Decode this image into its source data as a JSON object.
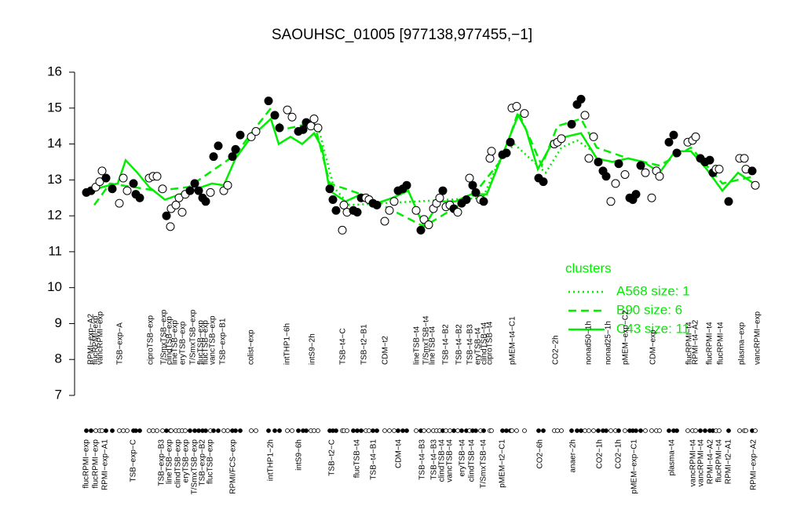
{
  "chart_data": {
    "type": "line",
    "title": "SAOUHSC_01005 [977138,977455,−1]",
    "ylim": [
      7,
      16
    ],
    "yticks": [
      7,
      8,
      9,
      10,
      11,
      12,
      13,
      14,
      15,
      16
    ],
    "xlim": [
      0,
      880
    ],
    "legend_title": "clusters",
    "legend": "right",
    "points": {
      "color": "#000000",
      "x": [
        15,
        21,
        27,
        32,
        35,
        40,
        48,
        57,
        62,
        67,
        75,
        78,
        83,
        95,
        100,
        105,
        112,
        117,
        122,
        123,
        129,
        133,
        137,
        141,
        147,
        153,
        158,
        163,
        167,
        173,
        177,
        183,
        190,
        195,
        201,
        205,
        211,
        225,
        231,
        247,
        255,
        261,
        271,
        277,
        285,
        291,
        295,
        301,
        305,
        310,
        325,
        329,
        333,
        341,
        343,
        347,
        355,
        360,
        365,
        371,
        375,
        380,
        385,
        395,
        401,
        407,
        412,
        418,
        423,
        435,
        441,
        445,
        451,
        457,
        461,
        465,
        469,
        473,
        478,
        483,
        488,
        493,
        499,
        503,
        507,
        511,
        517,
        521,
        529,
        531,
        545,
        550,
        555,
        557,
        563,
        573,
        591,
        597,
        611,
        615,
        620,
        633,
        640,
        645,
        650,
        655,
        661,
        667,
        673,
        677,
        683,
        689,
        693,
        701,
        707,
        711,
        715,
        721,
        727,
        735,
        741,
        745,
        757,
        763,
        767,
        781,
        787,
        791,
        797,
        803,
        809,
        813,
        817,
        821,
        833,
        847,
        853,
        855,
        863,
        867
      ],
      "values": [
        12.65,
        12.7,
        12.8,
        12.95,
        13.25,
        13.05,
        12.75,
        12.35,
        13.05,
        12.7,
        12.9,
        12.6,
        12.5,
        13.05,
        13.1,
        13.1,
        12.75,
        12.0,
        11.7,
        12.2,
        12.3,
        12.5,
        12.1,
        12.6,
        12.7,
        12.9,
        12.7,
        12.5,
        12.4,
        12.65,
        13.65,
        13.95,
        12.7,
        12.85,
        13.65,
        13.85,
        14.25,
        14.2,
        14.35,
        15.2,
        14.8,
        14.45,
        14.95,
        14.75,
        14.35,
        14.4,
        14.6,
        14.5,
        14.7,
        14.45,
        12.75,
        12.45,
        12.15,
        11.6,
        12.3,
        12.1,
        12.15,
        12.1,
        12.5,
        12.5,
        12.45,
        12.35,
        12.3,
        11.85,
        12.15,
        12.4,
        12.7,
        12.75,
        12.85,
        12.15,
        11.6,
        11.9,
        11.75,
        12.2,
        12.35,
        12.5,
        12.7,
        12.25,
        12.3,
        12.2,
        12.1,
        12.35,
        12.45,
        13.05,
        12.85,
        12.65,
        12.45,
        12.4,
        13.6,
        13.8,
        13.7,
        13.75,
        14.05,
        15.0,
        15.05,
        14.85,
        13.05,
        12.95,
        14.0,
        14.05,
        14.15,
        14.55,
        15.1,
        15.25,
        14.8,
        13.6,
        14.2,
        13.5,
        13.25,
        13.1,
        12.4,
        12.9,
        13.45,
        13.15,
        12.5,
        12.45,
        12.6,
        13.4,
        13.2,
        12.5,
        13.25,
        13.1,
        14.05,
        14.25,
        13.75,
        14.05,
        14.1,
        14.2,
        13.6,
        13.5,
        13.55,
        13.2,
        13.3,
        13.3,
        12.4,
        13.6,
        13.6,
        13.3,
        13.25,
        12.85
      ],
      "filled": [
        true,
        true,
        false,
        false,
        false,
        true,
        true,
        false,
        false,
        false,
        true,
        true,
        true,
        false,
        false,
        false,
        false,
        true,
        false,
        false,
        false,
        false,
        false,
        false,
        true,
        true,
        true,
        true,
        true,
        false,
        true,
        true,
        false,
        false,
        true,
        true,
        true,
        false,
        false,
        true,
        true,
        true,
        false,
        false,
        true,
        true,
        true,
        false,
        false,
        false,
        true,
        true,
        true,
        false,
        false,
        false,
        true,
        true,
        true,
        false,
        false,
        true,
        true,
        false,
        false,
        false,
        true,
        true,
        true,
        false,
        true,
        false,
        false,
        false,
        false,
        false,
        true,
        false,
        false,
        true,
        false,
        true,
        true,
        false,
        true,
        true,
        false,
        true,
        false,
        false,
        true,
        true,
        true,
        false,
        false,
        false,
        true,
        true,
        false,
        false,
        false,
        true,
        true,
        true,
        false,
        false,
        false,
        true,
        true,
        true,
        false,
        false,
        true,
        false,
        true,
        true,
        true,
        true,
        false,
        false,
        false,
        false,
        true,
        true,
        true,
        false,
        false,
        false,
        true,
        true,
        true,
        true,
        false,
        false,
        true,
        false,
        false,
        false,
        true,
        false
      ]
    },
    "series": [
      {
        "name": "A568 size: 1",
        "style": "dotted",
        "color": "#00ee00",
        "x": [
          300,
          310,
          330,
          350,
          520,
          540,
          560,
          600,
          620,
          640,
          660
        ],
        "values": [
          14.6,
          14.5,
          12.8,
          12.3,
          12.5,
          13.5,
          14.0,
          13.2,
          13.9,
          14.1,
          13.8
        ]
      },
      {
        "name": "B90 size: 6",
        "style": "dashed",
        "color": "#00ee00",
        "x": [
          25,
          45,
          105,
          145,
          205,
          225,
          250,
          265,
          285,
          305,
          325,
          365,
          445,
          505,
          545,
          565,
          595,
          615,
          645,
          665,
          705,
          745,
          785,
          825,
          865
        ],
        "values": [
          12.3,
          12.9,
          12.7,
          12.8,
          13.7,
          14.3,
          15.0,
          14.4,
          14.5,
          14.6,
          12.9,
          12.6,
          11.7,
          12.5,
          13.6,
          14.9,
          13.4,
          14.5,
          14.7,
          13.9,
          13.6,
          13.4,
          13.9,
          12.9,
          13.1
        ]
      },
      {
        "name": "C43 size: 11",
        "style": "solid",
        "color": "#00ee00",
        "x": [
          15,
          35,
          55,
          65,
          80,
          95,
          115,
          135,
          155,
          175,
          190,
          205,
          225,
          250,
          260,
          275,
          290,
          305,
          315,
          325,
          345,
          365,
          385,
          405,
          425,
          445,
          465,
          485,
          505,
          525,
          545,
          565,
          575,
          590,
          605,
          625,
          645,
          665,
          685,
          705,
          725,
          745,
          765,
          785,
          805,
          825,
          845,
          865
        ],
        "values": [
          12.6,
          12.8,
          12.9,
          13.55,
          13.2,
          12.8,
          12.45,
          12.6,
          12.75,
          12.9,
          12.85,
          13.6,
          14.2,
          14.7,
          14.0,
          14.2,
          14.0,
          14.3,
          13.9,
          12.7,
          12.4,
          12.6,
          12.35,
          12.5,
          12.7,
          11.7,
          12.4,
          12.4,
          12.6,
          12.6,
          13.7,
          14.8,
          14.4,
          13.3,
          13.9,
          14.2,
          14.3,
          13.6,
          13.5,
          13.6,
          13.5,
          13.2,
          13.8,
          13.8,
          13.3,
          12.7,
          13.2,
          12.9
        ]
      }
    ],
    "top_labels": {
      "text": [
        "RPMI−exp−A2",
        "flucRPMI−exp",
        "vancRPMI−exp",
        "TSB−exp−A",
        "ciproTSB−exp",
        "T/SmxTSB−exp",
        "clindTSB−exp",
        "lineTSB−exp",
        "eryTSB−exp",
        "T/SmxTSB−exp",
        "flucTSB−exp",
        "flucTSB−exp",
        "vancTSB−exp",
        "TSB−exp−B1",
        "colist−exp",
        "intTHP1−6h",
        "intS9−2h",
        "TSB−t4−C",
        "TSB−t2−B1",
        "CDM−t2",
        "lineTSB−t4",
        "T/SmxTSB−t4",
        "lineTSB−t4",
        "TSB−t4−B2",
        "TSB−t4−B2",
        "TSB−t4−B3",
        "eryTSB−t4",
        "clindTSB−t4",
        "ciproTSB−t4",
        "pMEM−t4−C1",
        "CO2−2h",
        "nonad50−1h",
        "nonad25−1h",
        "pMEM−exp−C2",
        "CDM−exp",
        "flucRPMI−t4",
        "RPMI−t4−A2",
        "flucRPMI−t4",
        "flucRPMI−t4",
        "plasma−exp",
        "vancRPMI−exp"
      ],
      "x": [
        21,
        27,
        33,
        58,
        97,
        114,
        121,
        128,
        138,
        151,
        161,
        167,
        176,
        189,
        225,
        271,
        303,
        342,
        369,
        396,
        436,
        448,
        456,
        473,
        490,
        504,
        514,
        522,
        529,
        558,
        613,
        655,
        680,
        702,
        737,
        783,
        791,
        809,
        823,
        850,
        870
      ]
    },
    "bottom_labels": {
      "text": [
        "flucRPMI−exp",
        "flucRPMI−exp",
        "RPMI−exp−A1",
        "TSB−exp−C",
        "TSB−exp−B3",
        "lineTSB−exp",
        "clindTSB−exp",
        "eryTSB−exp",
        "T/SmxTSB−exp",
        "TSB−exp−B2",
        "flucTSB−exp",
        "RPMI/FCS−exp",
        "intTHP1−2h",
        "intS9−6h",
        "TSB−t2−C",
        "flucTSB−t4",
        "TSB−t4−B1",
        "CDM−t4",
        "TSB−t4−B3",
        "TSB−t4−B3",
        "clindTSB−t4",
        "vancTSB−t4",
        "eryTSB−t4",
        "clindTSB−t4",
        "T/SmxTSB−t4",
        "pMEM−t2−C1",
        "CO2−6h",
        "anaer−2h",
        "CO2−1h",
        "CO2−1h",
        "pMEM−exp−C1",
        "plasma−t4",
        "vancRPMI−t4",
        "vancRPMI−t4",
        "RPMI−t4−A2",
        "flucRPMI−t4",
        "RPMI−t2−A1",
        "RPMI−exp−A2"
      ],
      "x": [
        15,
        27,
        39,
        75,
        111,
        121,
        132,
        142,
        153,
        163,
        173,
        202,
        250,
        286,
        328,
        360,
        381,
        413,
        443,
        458,
        468,
        478,
        494,
        506,
        521,
        545,
        593,
        635,
        669,
        693,
        713,
        761,
        788,
        798,
        810,
        821,
        833,
        865
      ]
    }
  }
}
